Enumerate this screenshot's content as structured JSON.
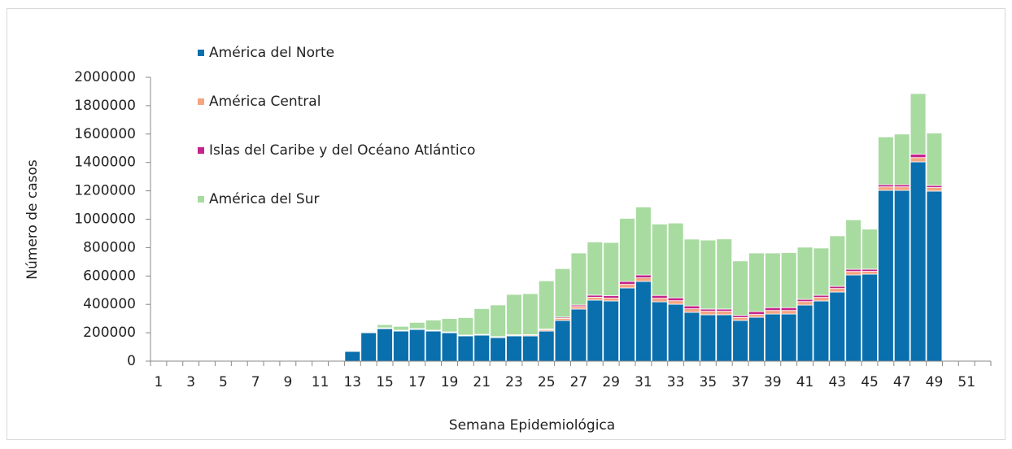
{
  "chart_data": {
    "type": "stacked_bar",
    "x_label": "Semana Epidemiológica",
    "y_label": "Número de casos",
    "categories": [
      "1",
      null,
      "3",
      null,
      "5",
      null,
      "7",
      null,
      "9",
      null,
      "11",
      null,
      "13",
      null,
      "15",
      null,
      "17",
      null,
      "19",
      null,
      "21",
      null,
      "23",
      null,
      "25",
      null,
      "27",
      null,
      "29",
      null,
      "31",
      null,
      "33",
      null,
      "35",
      null,
      "37",
      null,
      "39",
      null,
      "41",
      null,
      "43",
      null,
      "45",
      null,
      "47",
      null,
      "49",
      null,
      "51",
      null
    ],
    "series": [
      {
        "name": "América del Norte",
        "color": "#0a6fad",
        "values": [
          0,
          0,
          0,
          0,
          0,
          0,
          0,
          0,
          0,
          0,
          0,
          5000,
          69000,
          200000,
          229000,
          212000,
          223000,
          212000,
          200000,
          178000,
          183000,
          166000,
          178000,
          178000,
          212000,
          287000,
          367000,
          430000,
          424000,
          516000,
          562000,
          418000,
          401000,
          344000,
          327000,
          327000,
          287000,
          309000,
          332000,
          332000,
          395000,
          424000,
          487000,
          607000,
          613000,
          1203000,
          1203000,
          1404000,
          1198000,
          0,
          0,
          0
        ]
      },
      {
        "name": "América Central",
        "color": "#f4a582",
        "values": [
          0,
          0,
          0,
          0,
          0,
          0,
          0,
          0,
          0,
          0,
          0,
          0,
          1000,
          3000,
          4000,
          4000,
          4000,
          4000,
          4000,
          4000,
          4000,
          5000,
          6000,
          7000,
          10000,
          15000,
          18000,
          20000,
          20000,
          25000,
          25000,
          25000,
          25000,
          25000,
          25000,
          25000,
          20000,
          20000,
          25000,
          25000,
          25000,
          25000,
          25000,
          25000,
          20000,
          25000,
          25000,
          30000,
          25000,
          0,
          0,
          0
        ]
      },
      {
        "name": "Islas del Caribe y del Océano Atlántico",
        "color": "#c4238a",
        "values": [
          0,
          0,
          0,
          0,
          0,
          0,
          0,
          0,
          0,
          0,
          0,
          0,
          500,
          2000,
          2000,
          2000,
          2000,
          2000,
          2000,
          2000,
          2000,
          2000,
          2000,
          2000,
          5000,
          8000,
          10000,
          15000,
          18000,
          20000,
          20000,
          20000,
          20000,
          20000,
          15000,
          15000,
          15000,
          20000,
          20000,
          20000,
          15000,
          15000,
          15000,
          15000,
          15000,
          15000,
          15000,
          25000,
          15000,
          0,
          0,
          0
        ]
      },
      {
        "name": "América del Sur",
        "color": "#a8dba0",
        "values": [
          0,
          0,
          0,
          0,
          0,
          0,
          0,
          0,
          0,
          0,
          0,
          0,
          1500,
          5000,
          22000,
          27000,
          44000,
          72000,
          94000,
          123000,
          181000,
          223000,
          284000,
          289000,
          339000,
          342000,
          367000,
          375000,
          374000,
          445000,
          479000,
          503000,
          527000,
          471000,
          486000,
          494000,
          384000,
          413000,
          385000,
          388000,
          368000,
          333000,
          356000,
          349000,
          282000,
          337000,
          357000,
          426000,
          369000,
          0,
          0,
          0
        ]
      }
    ],
    "ylim": [
      0,
      2000000
    ],
    "yticks": [
      0,
      200000,
      400000,
      600000,
      800000,
      1000000,
      1200000,
      1400000,
      1600000,
      1800000,
      2000000
    ]
  }
}
